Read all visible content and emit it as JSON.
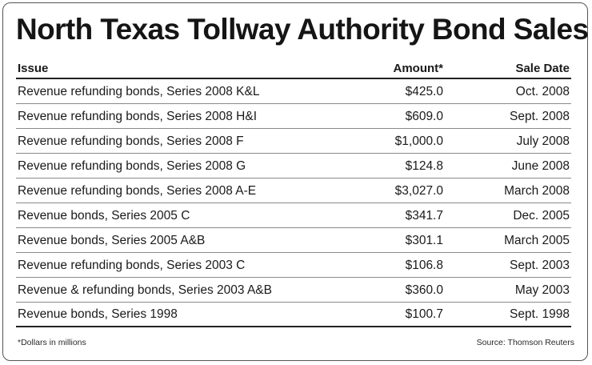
{
  "title": "North Texas Tollway Authority Bond Sales",
  "table": {
    "headers": {
      "issue": "Issue",
      "amount": "Amount*",
      "sale_date": "Sale Date"
    },
    "rows": [
      {
        "issue": "Revenue refunding bonds, Series 2008 K&L",
        "amount": "$425.0",
        "sale_date": "Oct. 2008"
      },
      {
        "issue": "Revenue refunding bonds, Series 2008 H&I",
        "amount": "$609.0",
        "sale_date": "Sept. 2008"
      },
      {
        "issue": "Revenue refunding bonds, Series 2008 F",
        "amount": "$1,000.0",
        "sale_date": "July 2008"
      },
      {
        "issue": "Revenue refunding bonds, Series 2008 G",
        "amount": "$124.8",
        "sale_date": "June 2008"
      },
      {
        "issue": "Revenue refunding bonds, Series 2008 A-E",
        "amount": "$3,027.0",
        "sale_date": "March 2008"
      },
      {
        "issue": "Revenue bonds, Series 2005 C",
        "amount": "$341.7",
        "sale_date": "Dec. 2005"
      },
      {
        "issue": "Revenue bonds, Series 2005 A&B",
        "amount": "$301.1",
        "sale_date": "March 2005"
      },
      {
        "issue": "Revenue refunding bonds, Series 2003 C",
        "amount": "$106.8",
        "sale_date": "Sept. 2003"
      },
      {
        "issue": "Revenue & refunding bonds, Series 2003 A&B",
        "amount": "$360.0",
        "sale_date": "May 2003"
      },
      {
        "issue": "Revenue bonds, Series 1998",
        "amount": "$100.7",
        "sale_date": "Sept. 1998"
      }
    ]
  },
  "footnotes": {
    "note": "*Dollars in millions",
    "source": "Source: Thomson Reuters"
  }
}
